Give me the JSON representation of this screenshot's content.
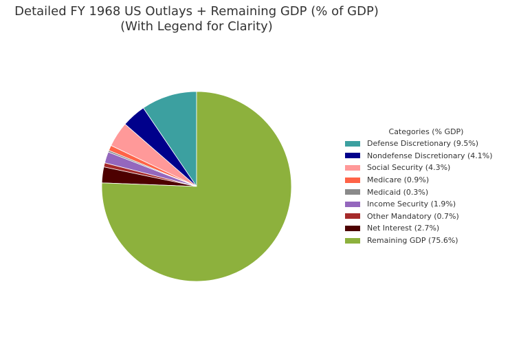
{
  "title_line1": "Detailed FY 1968 US Outlays + Remaining GDP (% of GDP)",
  "title_line2": "(With Legend for Clarity)",
  "chart_data": {
    "type": "pie",
    "title": "Detailed FY 1968 US Outlays + Remaining GDP (% of GDP) (With Legend for Clarity)",
    "start_angle_deg": 90,
    "direction": "counterclockwise",
    "legend_title": "Categories (% GDP)",
    "legend_position": "right",
    "slices": [
      {
        "label": "Defense Discretionary (9.5%)",
        "value": 9.5,
        "color": "#3ca0a0"
      },
      {
        "label": "Nondefense Discretionary (4.1%)",
        "value": 4.1,
        "color": "#00008b"
      },
      {
        "label": "Social Security (4.3%)",
        "value": 4.3,
        "color": "#ff9999"
      },
      {
        "label": "Medicare (0.9%)",
        "value": 0.9,
        "color": "#ff6347"
      },
      {
        "label": "Medicaid (0.3%)",
        "value": 0.3,
        "color": "#8a8a8a"
      },
      {
        "label": "Income Security (1.9%)",
        "value": 1.9,
        "color": "#9467bd"
      },
      {
        "label": "Other Mandatory (0.7%)",
        "value": 0.7,
        "color": "#a52a2a"
      },
      {
        "label": "Net Interest (2.7%)",
        "value": 2.7,
        "color": "#4d0000"
      },
      {
        "label": "Remaining GDP (75.6%)",
        "value": 75.6,
        "color": "#8db13d"
      }
    ]
  }
}
